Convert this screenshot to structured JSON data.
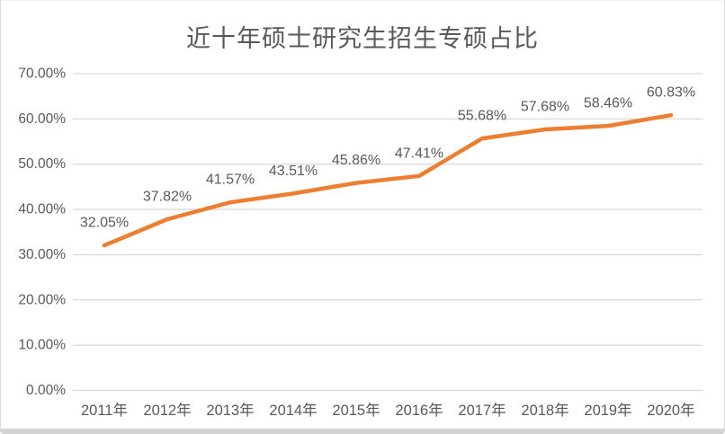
{
  "chart_data": {
    "type": "line",
    "title": "近十年硕士研究生招生专硕占比",
    "categories": [
      "2011年",
      "2012年",
      "2013年",
      "2014年",
      "2015年",
      "2016年",
      "2017年",
      "2018年",
      "2019年",
      "2020年"
    ],
    "values": [
      32.05,
      37.82,
      41.57,
      43.51,
      45.86,
      47.41,
      55.68,
      57.68,
      58.46,
      60.83
    ],
    "data_labels": [
      "32.05%",
      "37.82%",
      "41.57%",
      "43.51%",
      "45.86%",
      "47.41%",
      "55.68%",
      "57.68%",
      "58.46%",
      "60.83%"
    ],
    "y_ticks": [
      {
        "value": 0,
        "label": "0.00%"
      },
      {
        "value": 10,
        "label": "10.00%"
      },
      {
        "value": 20,
        "label": "20.00%"
      },
      {
        "value": 30,
        "label": "30.00%"
      },
      {
        "value": 40,
        "label": "40.00%"
      },
      {
        "value": 50,
        "label": "50.00%"
      },
      {
        "value": 60,
        "label": "60.00%"
      },
      {
        "value": 70,
        "label": "70.00%"
      }
    ],
    "xlabel": "",
    "ylabel": "",
    "ylim": [
      0,
      70
    ],
    "grid": true,
    "legend": "none",
    "colors": {
      "line": "#ED7D31",
      "text": "#595959",
      "gridline": "#D9D9D9",
      "background": "#FFFFFF"
    }
  }
}
